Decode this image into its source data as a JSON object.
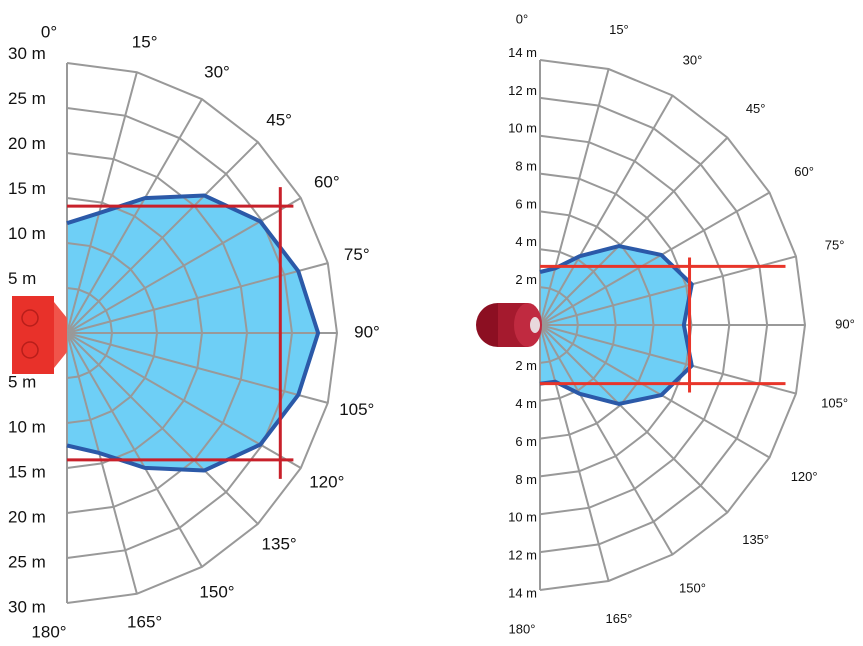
{
  "chart_data": [
    {
      "type": "polar",
      "xticks": [
        {
          "value": 0,
          "label": "0°"
        },
        {
          "value": 15,
          "label": "15°"
        },
        {
          "value": 30,
          "label": "30°"
        },
        {
          "value": 45,
          "label": "45°"
        },
        {
          "value": 60,
          "label": "60°"
        },
        {
          "value": 75,
          "label": "75°"
        },
        {
          "value": 90,
          "label": "90°"
        },
        {
          "value": 105,
          "label": "105°"
        },
        {
          "value": 120,
          "label": "120°"
        },
        {
          "value": 135,
          "label": "135°"
        },
        {
          "value": 150,
          "label": "150°"
        },
        {
          "value": 165,
          "label": "165°"
        },
        {
          "value": 180,
          "label": "180°"
        }
      ],
      "ylim": [
        0,
        30
      ],
      "yticks": [
        {
          "value": 5,
          "label": "5 m"
        },
        {
          "value": 10,
          "label": "10 m"
        },
        {
          "value": 15,
          "label": "15 m"
        },
        {
          "value": 20,
          "label": "20 m"
        },
        {
          "value": 25,
          "label": "25 m"
        },
        {
          "value": 30,
          "label": "30 m"
        }
      ],
      "series": [
        {
          "color": "#6ecff6",
          "x": [
            0,
            15,
            30,
            45,
            60,
            75,
            90,
            105,
            120,
            135,
            150,
            165,
            180
          ],
          "values": [
            12.2,
            13.8,
            17.3,
            21.6,
            24.8,
            26.6,
            27.9,
            26.6,
            24.8,
            21.6,
            17.3,
            13.8,
            12.5
          ]
        }
      ],
      "box": {
        "x": 23.7,
        "y": 14.1,
        "color": "#c8202a"
      }
    },
    {
      "type": "polar",
      "xticks": [
        {
          "value": 0,
          "label": "0°"
        },
        {
          "value": 15,
          "label": "15°"
        },
        {
          "value": 30,
          "label": "30°"
        },
        {
          "value": 45,
          "label": "45°"
        },
        {
          "value": 60,
          "label": "60°"
        },
        {
          "value": 75,
          "label": "75°"
        },
        {
          "value": 90,
          "label": "90°"
        },
        {
          "value": 105,
          "label": "105°"
        },
        {
          "value": 120,
          "label": "120°"
        },
        {
          "value": 135,
          "label": "135°"
        },
        {
          "value": 150,
          "label": "150°"
        },
        {
          "value": 165,
          "label": "165°"
        },
        {
          "value": 180,
          "label": "180°"
        }
      ],
      "ylim": [
        0,
        14
      ],
      "yticks": [
        {
          "value": 2,
          "label": "2 m"
        },
        {
          "value": 4,
          "label": "4 m"
        },
        {
          "value": 6,
          "label": "6 m"
        },
        {
          "value": 8,
          "label": "8 m"
        },
        {
          "value": 10,
          "label": "10 m"
        },
        {
          "value": 12,
          "label": "12 m"
        },
        {
          "value": 14,
          "label": "14 m"
        }
      ],
      "series": [
        {
          "color": "#6ecff6",
          "x": [
            0,
            15,
            30,
            45,
            60,
            75,
            90,
            105,
            120,
            135,
            150,
            165,
            180
          ],
          "values": [
            2.8,
            3.1,
            4.2,
            5.9,
            7.4,
            8.3,
            7.6,
            8.3,
            7.4,
            5.9,
            4.2,
            3.1,
            3.1
          ]
        }
      ],
      "box": {
        "x": 7.9,
        "y": 3.1,
        "color": "#e8352a"
      }
    }
  ]
}
